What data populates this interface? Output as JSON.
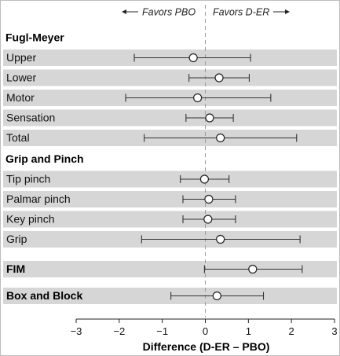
{
  "chart_data": {
    "type": "forest",
    "xlabel": "Difference (D-ER – PBO)",
    "xlim": [
      -3,
      3
    ],
    "x_ticks": [
      "−3",
      "−2",
      "−1",
      "0",
      "1",
      "2",
      "3"
    ],
    "x_tick_values": [
      -3,
      -2,
      -1,
      0,
      1,
      2,
      3
    ],
    "reference_line": 0,
    "favors_left": "Favors PBO",
    "favors_right": "Favors D-ER",
    "groups": [
      {
        "name": "Fugl-Meyer",
        "header_style": "above",
        "rows": [
          {
            "label": "Upper",
            "estimate": -0.28,
            "lower": -1.65,
            "upper": 1.05
          },
          {
            "label": "Lower",
            "estimate": 0.32,
            "lower": -0.38,
            "upper": 1.02
          },
          {
            "label": "Motor",
            "estimate": -0.18,
            "lower": -1.85,
            "upper": 1.52
          },
          {
            "label": "Sensation",
            "estimate": 0.1,
            "lower": -0.45,
            "upper": 0.65
          },
          {
            "label": "Total",
            "estimate": 0.35,
            "lower": -1.42,
            "upper": 2.12
          }
        ]
      },
      {
        "name": "Grip and Pinch",
        "header_style": "above",
        "rows": [
          {
            "label": "Tip pinch",
            "estimate": -0.02,
            "lower": -0.58,
            "upper": 0.55
          },
          {
            "label": "Palmar pinch",
            "estimate": 0.08,
            "lower": -0.52,
            "upper": 0.7
          },
          {
            "label": "Key pinch",
            "estimate": 0.06,
            "lower": -0.52,
            "upper": 0.7
          },
          {
            "label": "Grip",
            "estimate": 0.35,
            "lower": -1.48,
            "upper": 2.2
          }
        ]
      },
      {
        "name": "FIM",
        "header_style": "inline",
        "rows": [
          {
            "label": "",
            "estimate": 1.1,
            "lower": -0.02,
            "upper": 2.25
          }
        ]
      },
      {
        "name": "Box and Block",
        "header_style": "inline",
        "rows": [
          {
            "label": "",
            "estimate": 0.27,
            "lower": -0.8,
            "upper": 1.35
          }
        ]
      }
    ],
    "grid": false,
    "legend": "none"
  }
}
